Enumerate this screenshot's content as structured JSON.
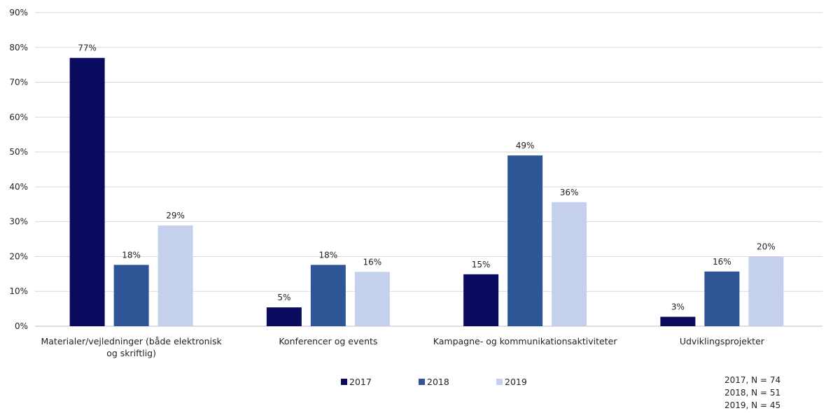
{
  "chart_data": {
    "type": "bar",
    "categories": [
      [
        "Materialer/vejledninger (både elektronisk",
        "og skriftlig)"
      ],
      [
        "Konferencer og events"
      ],
      [
        "Kampagne- og kommunikationsaktiviteter"
      ],
      [
        "Udviklingsprojekter"
      ]
    ],
    "series": [
      {
        "name": "2017",
        "color": "#0a0a5e",
        "values": [
          77,
          5,
          15,
          3
        ],
        "labels": [
          "77%",
          "5%",
          "15%",
          "3%"
        ],
        "actual": [
          77.0,
          5.4,
          14.9,
          2.7
        ]
      },
      {
        "name": "2018",
        "color": "#2e5596",
        "values": [
          18,
          18,
          49,
          16
        ],
        "labels": [
          "18%",
          "18%",
          "49%",
          "16%"
        ],
        "actual": [
          17.6,
          17.6,
          49.0,
          15.7
        ]
      },
      {
        "name": "2019",
        "color": "#c5d1ec",
        "values": [
          29,
          16,
          36,
          20
        ],
        "labels": [
          "29%",
          "16%",
          "36%",
          "20%"
        ],
        "actual": [
          28.9,
          15.6,
          35.6,
          20.0
        ]
      }
    ],
    "ylim": [
      0,
      90
    ],
    "yticks": [
      "0%",
      "10%",
      "20%",
      "30%",
      "40%",
      "50%",
      "60%",
      "70%",
      "80%",
      "90%"
    ],
    "grid": true,
    "legend": "bottom-center",
    "note": [
      "2017, N = 74",
      "2018, N = 51",
      "2019, N = 45"
    ]
  }
}
